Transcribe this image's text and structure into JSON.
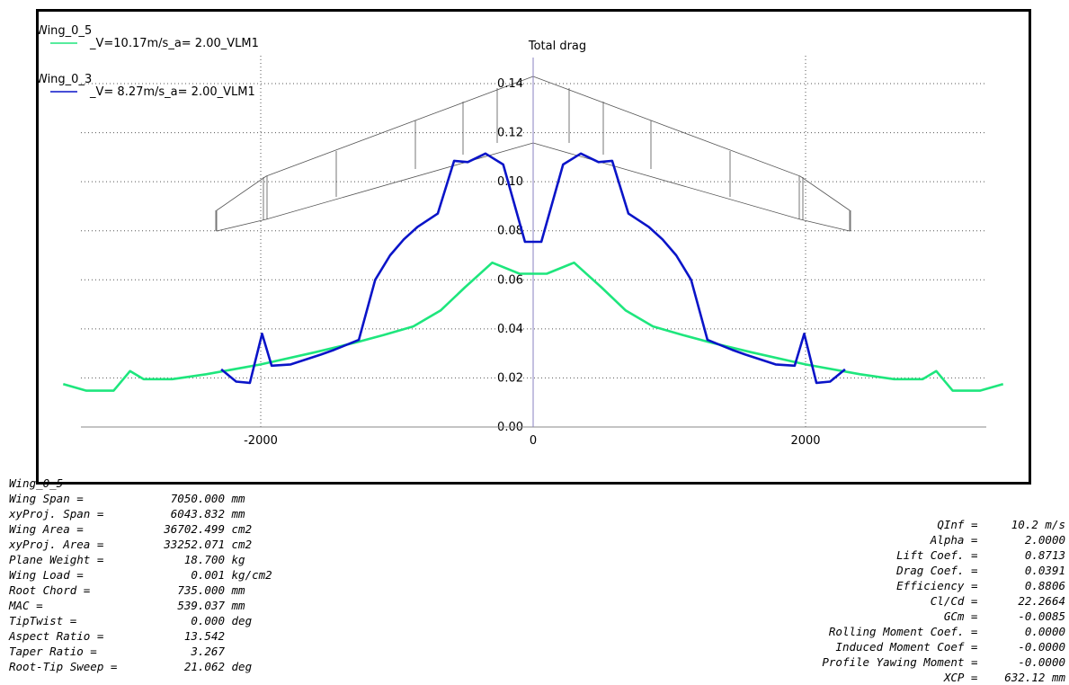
{
  "chart_data": {
    "type": "line",
    "title": "Total drag",
    "xlabel": "",
    "ylabel": "",
    "xlim": [
      -3300,
      3300
    ],
    "ylim": [
      0,
      0.15
    ],
    "x_ticks": [
      -2000,
      0,
      2000
    ],
    "x_tick_labels": [
      "-2000",
      "0",
      "2000"
    ],
    "y_ticks": [
      0.0,
      0.02,
      0.04,
      0.06,
      0.08,
      0.1,
      0.12,
      0.14
    ],
    "y_tick_labels": [
      "0.00",
      "0.02",
      "0.04",
      "0.06",
      "0.08",
      "0.10",
      "0.12",
      "0.14"
    ],
    "grid": true,
    "legend_position": "top-left",
    "series": [
      {
        "name": "Wing_0_5",
        "legend_label": "_V=10.17m/s_a= 2.00_VLM1",
        "color": "#1ee67d",
        "x": [
          -3450,
          -3280,
          -3080,
          -2960,
          -2860,
          -2650,
          -2400,
          -2000,
          -1600,
          -1300,
          -1100,
          -880,
          -680,
          -500,
          -300,
          -100,
          100,
          300,
          500,
          680,
          880,
          1100,
          1300,
          1600,
          2000,
          2400,
          2650,
          2860,
          2960,
          3080,
          3280,
          3450
        ],
        "y": [
          0.0175,
          0.0148,
          0.0148,
          0.0228,
          0.0195,
          0.0195,
          0.0215,
          0.0255,
          0.0305,
          0.0345,
          0.0375,
          0.041,
          0.0475,
          0.057,
          0.067,
          0.0625,
          0.0625,
          0.067,
          0.057,
          0.0475,
          0.041,
          0.0375,
          0.0345,
          0.0305,
          0.0255,
          0.0215,
          0.0195,
          0.0195,
          0.0228,
          0.0148,
          0.0148,
          0.0175
        ]
      },
      {
        "name": "Wing_0_3",
        "legend_label": "_V= 8.27m/s_a= 2.00_VLM1",
        "color": "#0a14c8",
        "x": [
          -2290,
          -2180,
          -2080,
          -1990,
          -1920,
          -1780,
          -1560,
          -1460,
          -1280,
          -1160,
          -1050,
          -950,
          -850,
          -700,
          -580,
          -480,
          -350,
          -220,
          -60,
          60,
          220,
          350,
          480,
          580,
          700,
          850,
          950,
          1050,
          1160,
          1280,
          1460,
          1560,
          1780,
          1920,
          1990,
          2080,
          2180,
          2290
        ],
        "y": [
          0.0235,
          0.0185,
          0.018,
          0.038,
          0.025,
          0.0255,
          0.0295,
          0.0315,
          0.0355,
          0.06,
          0.07,
          0.0765,
          0.0815,
          0.087,
          0.1085,
          0.108,
          0.1115,
          0.107,
          0.0755,
          0.0755,
          0.107,
          0.1115,
          0.108,
          0.1085,
          0.087,
          0.0815,
          0.0765,
          0.07,
          0.06,
          0.0355,
          0.0315,
          0.0295,
          0.0255,
          0.025,
          0.038,
          0.018,
          0.0185,
          0.0235
        ]
      }
    ]
  },
  "info_left": [
    {
      "label": "Wing_0_5",
      "value": ""
    },
    {
      "label": "Wing Span =",
      "value": "7050.000 mm"
    },
    {
      "label": "xyProj. Span =",
      "value": "6043.832 mm"
    },
    {
      "label": "Wing Area =",
      "value": "36702.499 cm2"
    },
    {
      "label": "xyProj. Area =",
      "value": "33252.071 cm2"
    },
    {
      "label": "Plane Weight =",
      "value": "18.700 kg"
    },
    {
      "label": "Wing Load =",
      "value": "0.001 kg/cm2"
    },
    {
      "label": "Root Chord =",
      "value": "735.000 mm"
    },
    {
      "label": "MAC =",
      "value": "539.037 mm"
    },
    {
      "label": "TipTwist =",
      "value": "0.000 deg"
    },
    {
      "label": "Aspect Ratio =",
      "value": "13.542"
    },
    {
      "label": "Taper Ratio =",
      "value": "3.267"
    },
    {
      "label": "Root-Tip Sweep =",
      "value": "21.062 deg"
    }
  ],
  "info_right": [
    {
      "label": "QInf =",
      "value": "10.2 m/s"
    },
    {
      "label": "Alpha =",
      "value": "2.0000"
    },
    {
      "label": "Lift Coef. =",
      "value": "0.8713"
    },
    {
      "label": "Drag Coef. =",
      "value": "0.0391"
    },
    {
      "label": "Efficiency =",
      "value": "0.8806"
    },
    {
      "label": "Cl/Cd =",
      "value": "22.2664"
    },
    {
      "label": "GCm =",
      "value": "-0.0085"
    },
    {
      "label": "Rolling Moment Coef. =",
      "value": "0.0000"
    },
    {
      "label": "Induced Moment Coef =",
      "value": "-0.0000"
    },
    {
      "label": "Profile Yawing Moment =",
      "value": "-0.0000"
    },
    {
      "label": "XCP =",
      "value": "632.12 mm"
    }
  ]
}
